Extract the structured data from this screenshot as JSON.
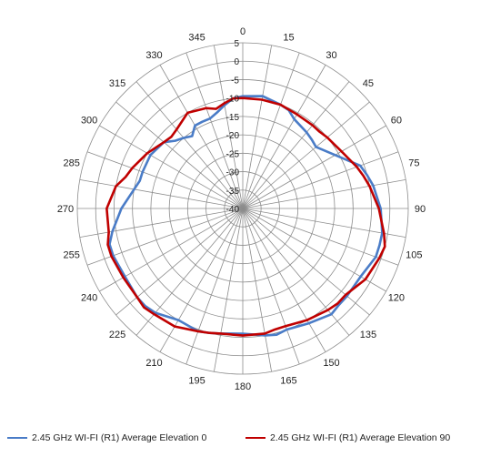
{
  "chart_data": {
    "type": "radar",
    "angle_labels": [
      "0",
      "15",
      "30",
      "45",
      "60",
      "75",
      "90",
      "105",
      "120",
      "135",
      "150",
      "165",
      "180",
      "195",
      "210",
      "225",
      "240",
      "255",
      "270",
      "285",
      "300",
      "315",
      "330",
      "345"
    ],
    "radial_ticks": [
      "5",
      "0",
      "-5",
      "-10",
      "-15",
      "-20",
      "-25",
      "-30",
      "-35",
      "-40"
    ],
    "rlim": [
      -40,
      5
    ],
    "grid": true,
    "legend_position": "bottom",
    "series": [
      {
        "name": "2.45 GHz WI-FI (R1) Average Elevation 0",
        "color": "#4a7cc7",
        "angles": [
          0,
          10,
          20,
          25,
          30,
          40,
          45,
          50,
          60,
          70,
          75,
          80,
          90,
          100,
          105,
          110,
          120,
          130,
          135,
          140,
          150,
          160,
          165,
          170,
          180,
          190,
          195,
          200,
          210,
          220,
          225,
          230,
          240,
          250,
          255,
          260,
          270,
          280,
          285,
          290,
          300,
          310,
          315,
          320,
          325,
          330,
          335,
          340,
          345,
          350,
          355
        ],
        "values": [
          -9.5,
          -9,
          -10,
          -10.5,
          -12,
          -13,
          -13.5,
          -14,
          -11,
          -6,
          -5,
          -4,
          -2.5,
          -1.5,
          -1.5,
          -1.5,
          -3,
          -3,
          -3,
          -2.5,
          -4,
          -5,
          -4.5,
          -5,
          -6,
          -5.5,
          -5,
          -4.5,
          -5,
          -3,
          -2.5,
          -2.5,
          -3,
          -2.5,
          -2.5,
          -4,
          -7,
          -10,
          -11,
          -11,
          -11,
          -12,
          -14,
          -15,
          -16,
          -14,
          -14,
          -14,
          -13,
          -11.5,
          -10
        ]
      },
      {
        "name": "2.45 GHz WI-FI (R1) Average Elevation 90",
        "color": "#c00000",
        "angles": [
          0,
          10,
          20,
          30,
          40,
          45,
          50,
          60,
          70,
          75,
          80,
          90,
          100,
          105,
          110,
          120,
          130,
          135,
          140,
          150,
          160,
          165,
          170,
          180,
          190,
          195,
          200,
          210,
          220,
          225,
          230,
          240,
          250,
          255,
          260,
          270,
          280,
          285,
          290,
          300,
          310,
          315,
          320,
          330,
          340,
          345,
          350,
          355
        ],
        "values": [
          -10,
          -10,
          -10,
          -10.5,
          -10.5,
          -10.5,
          -10,
          -9,
          -7,
          -6,
          -5,
          -3,
          -1,
          0,
          -0.5,
          -1.5,
          -3.5,
          -3.5,
          -4,
          -5,
          -6,
          -6,
          -5.5,
          -5.5,
          -5.5,
          -5,
          -4.5,
          -3,
          -2.5,
          -2,
          -2.5,
          -2.5,
          -2,
          -2,
          -3,
          -3,
          -5,
          -7,
          -8,
          -10,
          -12,
          -12.5,
          -12,
          -10,
          -11,
          -12,
          -11,
          -10
        ]
      }
    ]
  }
}
